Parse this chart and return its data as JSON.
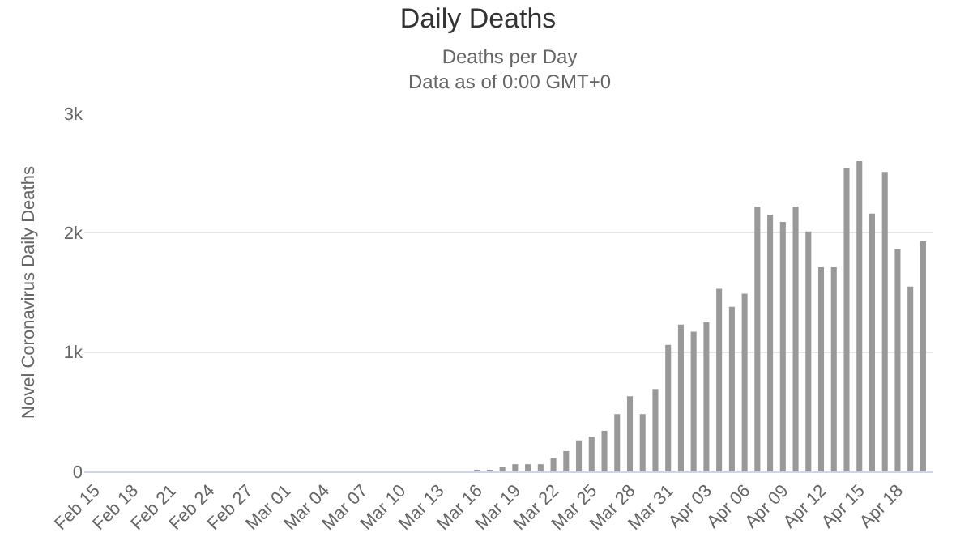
{
  "chart_data": {
    "type": "bar",
    "title": "Daily Deaths",
    "subtitle": "Deaths per Day\nData as of 0:00 GMT+0",
    "ylabel": "Novel Coronavirus Daily Deaths",
    "categories": [
      "Feb 15",
      null,
      null,
      "Feb 18",
      null,
      null,
      "Feb 21",
      null,
      null,
      "Feb 24",
      null,
      null,
      "Feb 27",
      null,
      null,
      "Mar 01",
      null,
      null,
      "Mar 04",
      null,
      null,
      "Mar 07",
      null,
      null,
      "Mar 10",
      null,
      null,
      "Mar 13",
      null,
      null,
      "Mar 16",
      null,
      null,
      "Mar 19",
      null,
      null,
      "Mar 22",
      null,
      null,
      "Mar 25",
      null,
      null,
      "Mar 28",
      null,
      null,
      "Mar 31",
      null,
      null,
      "Apr 03",
      null,
      null,
      "Apr 06",
      null,
      null,
      "Apr 09",
      null,
      null,
      "Apr 12",
      null,
      null,
      "Apr 15",
      null,
      null,
      "Apr 18",
      null,
      null
    ],
    "values": [
      0,
      0,
      0,
      0,
      0,
      0,
      0,
      0,
      0,
      0,
      0,
      0,
      0,
      0,
      0,
      0,
      0,
      0,
      0,
      0,
      0,
      0,
      0,
      0,
      0,
      0,
      0,
      0,
      0,
      0,
      10,
      10,
      40,
      60,
      60,
      60,
      110,
      170,
      260,
      290,
      340,
      480,
      630,
      480,
      690,
      1060,
      1230,
      1170,
      1250,
      1530,
      1380,
      1490,
      2220,
      2150,
      2090,
      2220,
      2010,
      1710,
      1710,
      2540,
      2600,
      2160,
      2510,
      1860,
      1550,
      1930
    ],
    "color": "#999999",
    "ylim": [
      0,
      3000
    ],
    "yticks": [
      {
        "value": 0,
        "label": "0"
      },
      {
        "value": 1000,
        "label": "1k"
      },
      {
        "value": 2000,
        "label": "2k"
      },
      {
        "value": 3000,
        "label": "3k"
      }
    ],
    "grid": "y"
  }
}
